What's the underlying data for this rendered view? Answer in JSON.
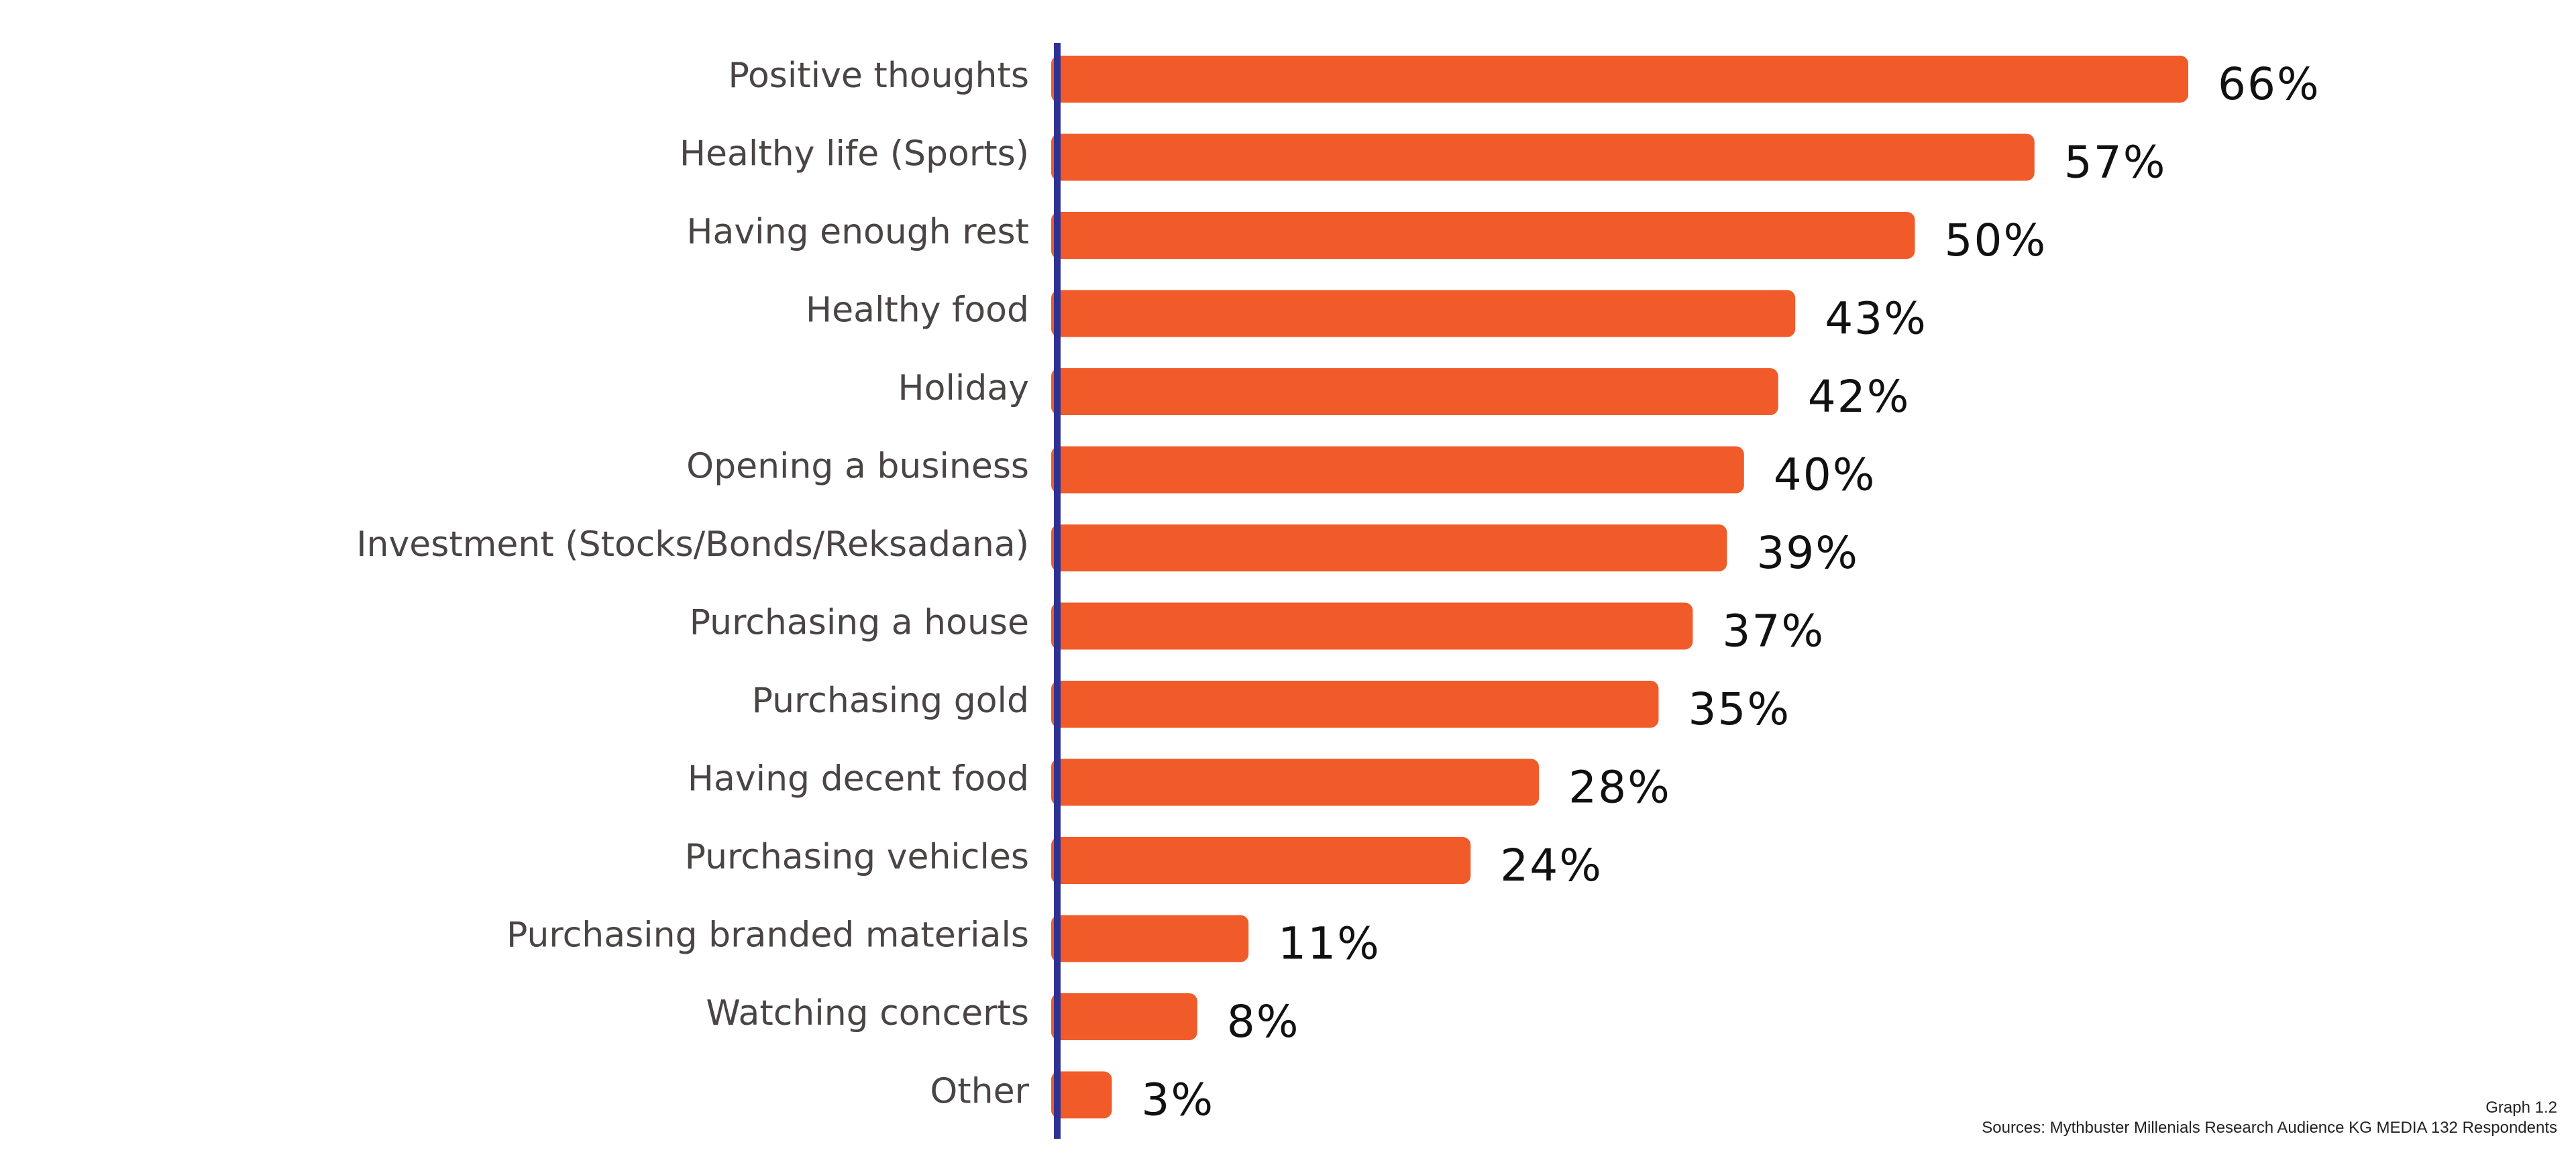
{
  "chart_data": {
    "type": "bar",
    "orientation": "horizontal",
    "categories": [
      "Positive thoughts",
      "Healthy life (Sports)",
      "Having enough rest",
      "Healthy food",
      "Holiday",
      "Opening a business",
      "Investment (Stocks/Bonds/Reksadana)",
      "Purchasing a house",
      "Purchasing gold",
      "Having decent food",
      "Purchasing vehicles",
      "Purchasing branded materials",
      "Watching concerts",
      "Other"
    ],
    "values": [
      66,
      57,
      50,
      43,
      42,
      40,
      39,
      37,
      35,
      28,
      24,
      11,
      8,
      3
    ],
    "value_labels": [
      "66%",
      "57%",
      "50%",
      "43%",
      "42%",
      "40%",
      "39%",
      "37%",
      "35%",
      "28%",
      "24%",
      "11%",
      "8%",
      "3%"
    ],
    "unit": "%",
    "xlim": [
      0,
      66
    ],
    "grid": false,
    "legend": "none",
    "colors": {
      "bar": "#f15a29",
      "axis": "#2e3192",
      "category_text": "#4a4444",
      "value_text": "#111111"
    }
  },
  "footnotes": {
    "graph_label": "Graph 1.2",
    "source": "Sources: Mythbuster Millenials Research Audience KG MEDIA 132 Respondents"
  }
}
